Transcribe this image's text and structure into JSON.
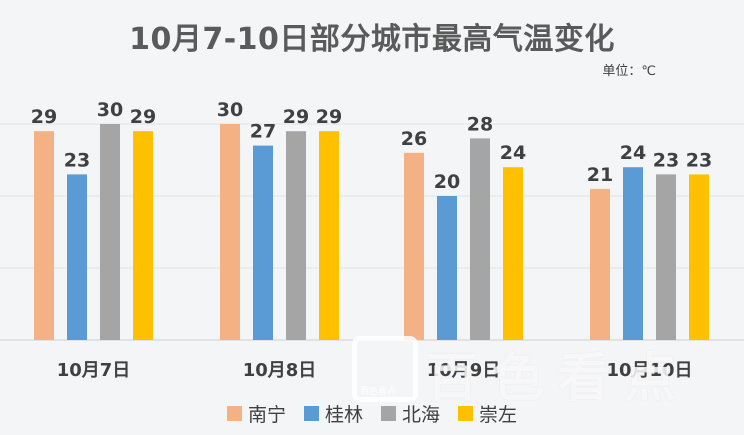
{
  "chart_data": {
    "type": "bar",
    "title": "10月7-10日部分城市最高气温变化",
    "unit_label": "单位：℃",
    "categories": [
      "10月7日",
      "10月8日",
      "10月9日",
      "10月10日"
    ],
    "series": [
      {
        "name": "南宁",
        "color": "#f4b183",
        "values": [
          29,
          30,
          26,
          21
        ]
      },
      {
        "name": "桂林",
        "color": "#5b9bd5",
        "values": [
          23,
          27,
          20,
          24
        ]
      },
      {
        "name": "北海",
        "color": "#a5a5a5",
        "values": [
          30,
          29,
          28,
          23
        ]
      },
      {
        "name": "崇左",
        "color": "#ffc000",
        "values": [
          29,
          29,
          24,
          23
        ]
      }
    ],
    "ylim": [
      0,
      40
    ],
    "grid": true,
    "legend_position": "bottom"
  },
  "watermark": {
    "text": "百色看点",
    "sub": "百色看点"
  }
}
